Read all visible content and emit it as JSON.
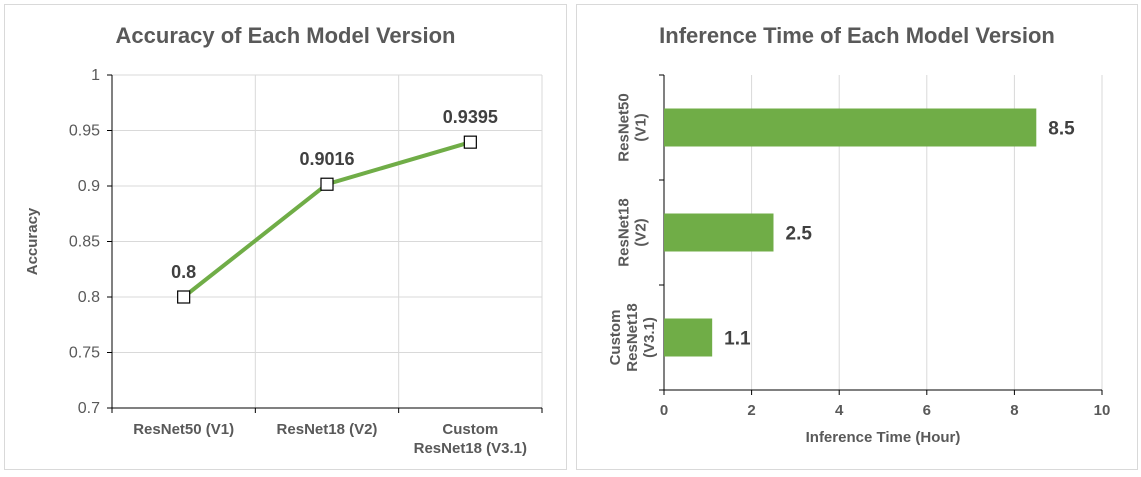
{
  "chart_data": [
    {
      "type": "line",
      "title": "Accuracy of Each Model Version",
      "xlabel": "",
      "ylabel": "Accuracy",
      "categories": [
        [
          "ResNet50 (V1)"
        ],
        [
          "ResNet18 (V2)"
        ],
        [
          "Custom",
          "ResNet18 (V3.1)"
        ]
      ],
      "values": [
        0.8,
        0.9016,
        0.9395
      ],
      "data_labels": [
        "0.8",
        "0.9016",
        "0.9395"
      ],
      "ylim": [
        0.7,
        1
      ],
      "yticks": [
        0.7,
        0.75,
        0.8,
        0.85,
        0.9,
        0.95,
        1
      ],
      "ytick_labels": [
        "0.7",
        "0.75",
        "0.8",
        "0.85",
        "0.9",
        "0.95",
        "1"
      ],
      "grid": true,
      "color": "#70ad47"
    },
    {
      "type": "bar",
      "orientation": "horizontal",
      "title": "Inference Time of Each Model Version",
      "xlabel": "Inference Time (Hour)",
      "ylabel": "",
      "categories": [
        [
          "ResNet50",
          "(V1)"
        ],
        [
          "ResNet18",
          "(V2)"
        ],
        [
          "Custom",
          "ResNet18",
          "(V3.1)"
        ]
      ],
      "values": [
        8.5,
        2.5,
        1.1
      ],
      "data_labels": [
        "8.5",
        "2.5",
        "1.1"
      ],
      "xlim": [
        0,
        10
      ],
      "xticks": [
        0,
        2,
        4,
        6,
        8,
        10
      ],
      "xtick_labels": [
        "0",
        "2",
        "4",
        "6",
        "8",
        "10"
      ],
      "grid": true,
      "color": "#70ad47"
    }
  ]
}
